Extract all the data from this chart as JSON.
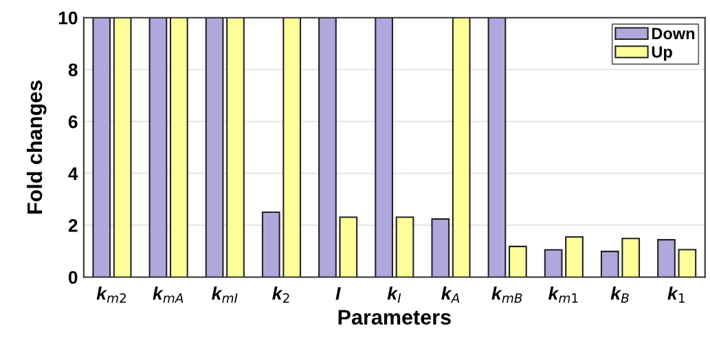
{
  "chart_data": {
    "type": "bar",
    "xlabel": "Parameters",
    "ylabel": "Fold changes",
    "categories": [
      "k$_{m2}$",
      "k$_{mA}$",
      "k$_{mI}$",
      "k$_{2}$",
      "I",
      "k$_{I}$",
      "k$_{A}$",
      "k$_{mB}$",
      "k$_{m1}$",
      "k$_{B}$",
      "k$_{1}$"
    ],
    "series": [
      {
        "name": "Down",
        "color": "#b0a8dc",
        "values": [
          10,
          10,
          10,
          2.5,
          10,
          10,
          2.24,
          10,
          1.05,
          0.99,
          1.44
        ]
      },
      {
        "name": "Up",
        "color": "#ffff99",
        "values": [
          10,
          10,
          10,
          10,
          2.31,
          2.31,
          10,
          1.18,
          1.55,
          1.49,
          1.06
        ]
      }
    ],
    "ylim": [
      0,
      10
    ],
    "yticks": [
      0,
      2,
      4,
      6,
      8,
      10
    ],
    "grid": "y",
    "legend": "top right"
  }
}
